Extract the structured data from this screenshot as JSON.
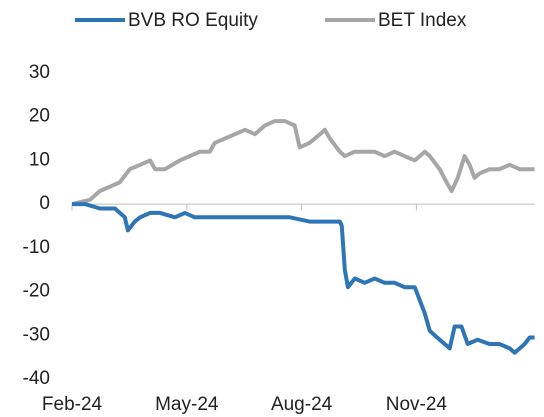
{
  "chart_data": {
    "type": "line",
    "series": [
      {
        "name": "BVB RO Equity",
        "color": "#2e75b6",
        "x": [
          0,
          0.34,
          0.73,
          1.12,
          1.25,
          1.38,
          1.46,
          1.64,
          1.78,
          2.04,
          2.3,
          2.69,
          2.95,
          3.21,
          3.6,
          4.13,
          4.65,
          5.17,
          5.69,
          6.21,
          6.74,
          7.0,
          7.05,
          7.13,
          7.21,
          7.39,
          7.65,
          7.91,
          8.17,
          8.43,
          8.69,
          8.96,
          9.09,
          9.22,
          9.35,
          9.61,
          9.87,
          10.0,
          10.18,
          10.34,
          10.6,
          10.91,
          11.17,
          11.44,
          11.57,
          11.83,
          11.96,
          12.09
        ],
        "values": [
          0,
          0,
          -1,
          -1,
          -2,
          -3,
          -6,
          -4,
          -3,
          -2,
          -2,
          -3,
          -2,
          -3,
          -3,
          -3,
          -3,
          -3,
          -3,
          -4,
          -4,
          -4,
          -5,
          -15,
          -19,
          -17,
          -18,
          -17,
          -18,
          -18,
          -19,
          -19,
          -22,
          -25,
          -29,
          -31,
          -33,
          -28,
          -28,
          -32,
          -31,
          -32,
          -32,
          -33,
          -34,
          -32,
          -30.5,
          -30.5
        ]
      },
      {
        "name": "BET Index",
        "color": "#a6a6a6",
        "x": [
          0,
          0.47,
          0.73,
          0.99,
          1.25,
          1.51,
          1.78,
          2.04,
          2.17,
          2.43,
          2.82,
          3.08,
          3.34,
          3.6,
          3.73,
          3.99,
          4.26,
          4.52,
          4.78,
          5.04,
          5.3,
          5.56,
          5.82,
          5.95,
          6.21,
          6.48,
          6.61,
          6.74,
          7.0,
          7.13,
          7.39,
          7.65,
          7.91,
          8.17,
          8.43,
          8.69,
          8.96,
          9.22,
          9.35,
          9.61,
          9.79,
          9.92,
          10.08,
          10.26,
          10.39,
          10.52,
          10.65,
          10.91,
          11.17,
          11.44,
          11.7,
          12.09
        ],
        "values": [
          0,
          1,
          3,
          4,
          5,
          8,
          9,
          10,
          8,
          8,
          10,
          11,
          12,
          12,
          14,
          15,
          16,
          17,
          16,
          18,
          19,
          19,
          18,
          13,
          14,
          16,
          17,
          15,
          12,
          11,
          12,
          12,
          12,
          11,
          12,
          11,
          10,
          12,
          11,
          8,
          5,
          3,
          6,
          11,
          9,
          6,
          7,
          8,
          8,
          9,
          8,
          8
        ]
      }
    ],
    "xlim": [
      0,
      12.1
    ],
    "xticks": [
      {
        "value": 0,
        "label": "Feb-24"
      },
      {
        "value": 3,
        "label": "May-24"
      },
      {
        "value": 6,
        "label": "Aug-24"
      },
      {
        "value": 9,
        "label": "Nov-24"
      }
    ],
    "ylim": [
      -40,
      30
    ],
    "yticks": [
      -40,
      -30,
      -20,
      -10,
      0,
      10,
      20,
      30
    ]
  }
}
